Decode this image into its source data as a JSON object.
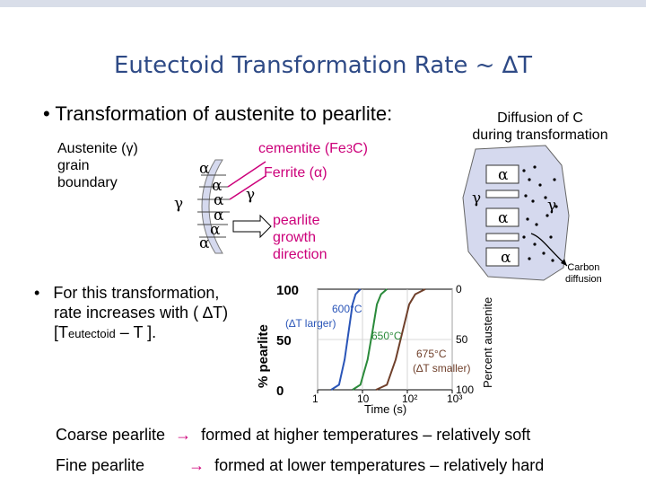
{
  "slide": {
    "title": "Eutectoid Transformation Rate ~ ∆T",
    "bullet_1": "Transformation of austenite to pearlite:",
    "bullet_2_line1": "For this transformation,",
    "bullet_2_line2": "rate increases with ( ∆T)",
    "bullet_2_line3_pre": "[T",
    "bullet_2_line3_sub": "eutectoid",
    "bullet_2_line3_post": " – T ].",
    "bullet_marker": "•"
  },
  "grain_diagram": {
    "austenite_label_line1": "Austenite (γ)",
    "austenite_label_line2": "grain",
    "austenite_label_line3": "boundary",
    "cementite_label": "cementite (Fe",
    "cementite_sub": "3",
    "cementite_end": "C)",
    "ferrite_label": "Ferrite (α)",
    "gamma": "γ",
    "alpha": "α",
    "growth_line1": "pearlite",
    "growth_line2": "growth",
    "growth_line3": "direction"
  },
  "diffusion_diagram": {
    "title_line1": "Diffusion of C",
    "title_line2": "during transformation",
    "alpha": "α",
    "gamma": "γ",
    "carbon_line1": "Carbon",
    "carbon_line2": "diffusion"
  },
  "chart_data": {
    "type": "line",
    "xlabel": "Time (s)",
    "xscale": "log",
    "ylabel_left": "% pearlite",
    "ylabel_right": "Percent austenite",
    "x_ticks": [
      "1",
      "10",
      "10²",
      "10³"
    ],
    "left_ticks": [
      "100",
      "50",
      "0"
    ],
    "right_ticks": [
      "0",
      "50",
      "100"
    ],
    "annotations": [
      {
        "text": "600°C"
      },
      {
        "text": "(∆T larger)"
      },
      {
        "text": "650°C"
      },
      {
        "text": "675°C"
      },
      {
        "text": "(∆T smaller)"
      }
    ],
    "series": [
      {
        "name": "600°C",
        "x": [
          2,
          3,
          4,
          5,
          6,
          7,
          9
        ],
        "y": [
          0,
          5,
          30,
          60,
          85,
          95,
          100
        ]
      },
      {
        "name": "650°C",
        "x": [
          6,
          9,
          13,
          17,
          21,
          26,
          35
        ],
        "y": [
          0,
          5,
          30,
          60,
          85,
          95,
          100
        ]
      },
      {
        "name": "675°C",
        "x": [
          20,
          35,
          55,
          80,
          110,
          150,
          250
        ],
        "y": [
          0,
          5,
          30,
          60,
          85,
          95,
          100
        ]
      }
    ],
    "xlim": [
      1,
      1000
    ],
    "ylim": [
      0,
      100
    ],
    "colors": {
      "600": "#2a55b8",
      "650": "#2a8a3a",
      "675": "#6f3f2a"
    }
  },
  "footer": {
    "coarse_label": "Coarse pearlite",
    "coarse_text": "formed at higher temperatures – relatively soft",
    "fine_label": "Fine pearlite",
    "fine_text": "formed at lower temperatures – relatively hard",
    "arrow": "→"
  },
  "colors": {
    "title": "#2e4a86",
    "accent": "#cc007a",
    "grain_fill": "#d5d9ee"
  }
}
